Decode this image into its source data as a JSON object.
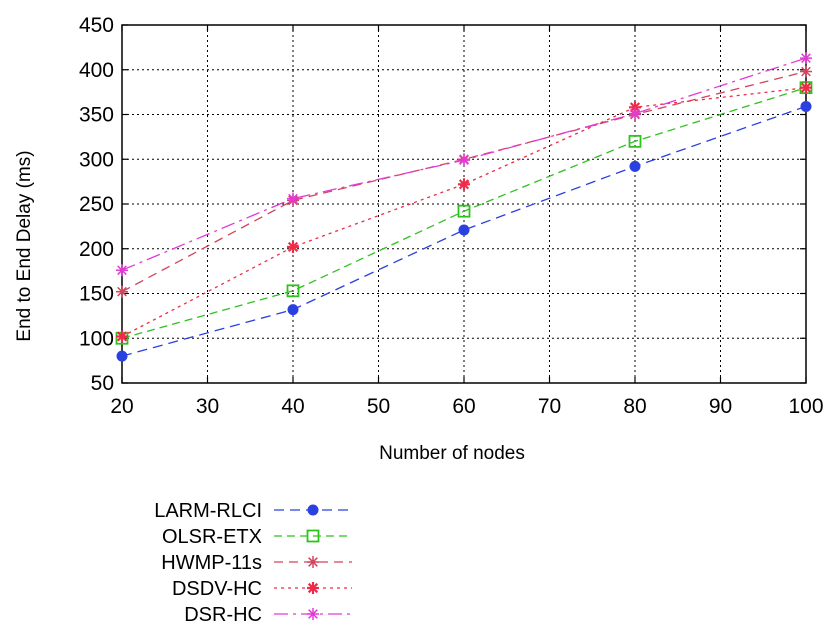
{
  "chart_data": {
    "type": "line",
    "title": "",
    "xlabel": "Number of nodes",
    "ylabel": "End to End Delay (ms)",
    "xlim": [
      20,
      100
    ],
    "ylim": [
      50,
      450
    ],
    "xticks": [
      20,
      30,
      40,
      50,
      60,
      70,
      80,
      90,
      100
    ],
    "yticks": [
      50,
      100,
      150,
      200,
      250,
      300,
      350,
      400,
      450
    ],
    "grid": true,
    "legend_position": "bottom-left",
    "x": [
      20,
      40,
      60,
      80,
      100
    ],
    "series": [
      {
        "name": "LARM-RLCI",
        "values": [
          80,
          132,
          221,
          292,
          359
        ],
        "color": "#2a40e0",
        "marker": "filled-circle",
        "dash": "10 6"
      },
      {
        "name": "OLSR-ETX",
        "values": [
          100,
          153,
          242,
          320,
          380
        ],
        "color": "#2ec21c",
        "marker": "open-square",
        "dash": "8 5"
      },
      {
        "name": "HWMP-11s",
        "values": [
          152,
          254,
          300,
          350,
          398
        ],
        "color": "#d2455d",
        "marker": "asterisk",
        "dash": "9 6"
      },
      {
        "name": "DSDV-HC",
        "values": [
          102,
          202,
          272,
          358,
          380
        ],
        "color": "#ee2c4a",
        "marker": "asterisk-bold",
        "dash": "3 4"
      },
      {
        "name": "DSR-HC",
        "values": [
          176,
          256,
          299,
          351,
          413
        ],
        "color": "#e33ad6",
        "marker": "asterisk",
        "dash": "14 5 3 5"
      }
    ]
  }
}
